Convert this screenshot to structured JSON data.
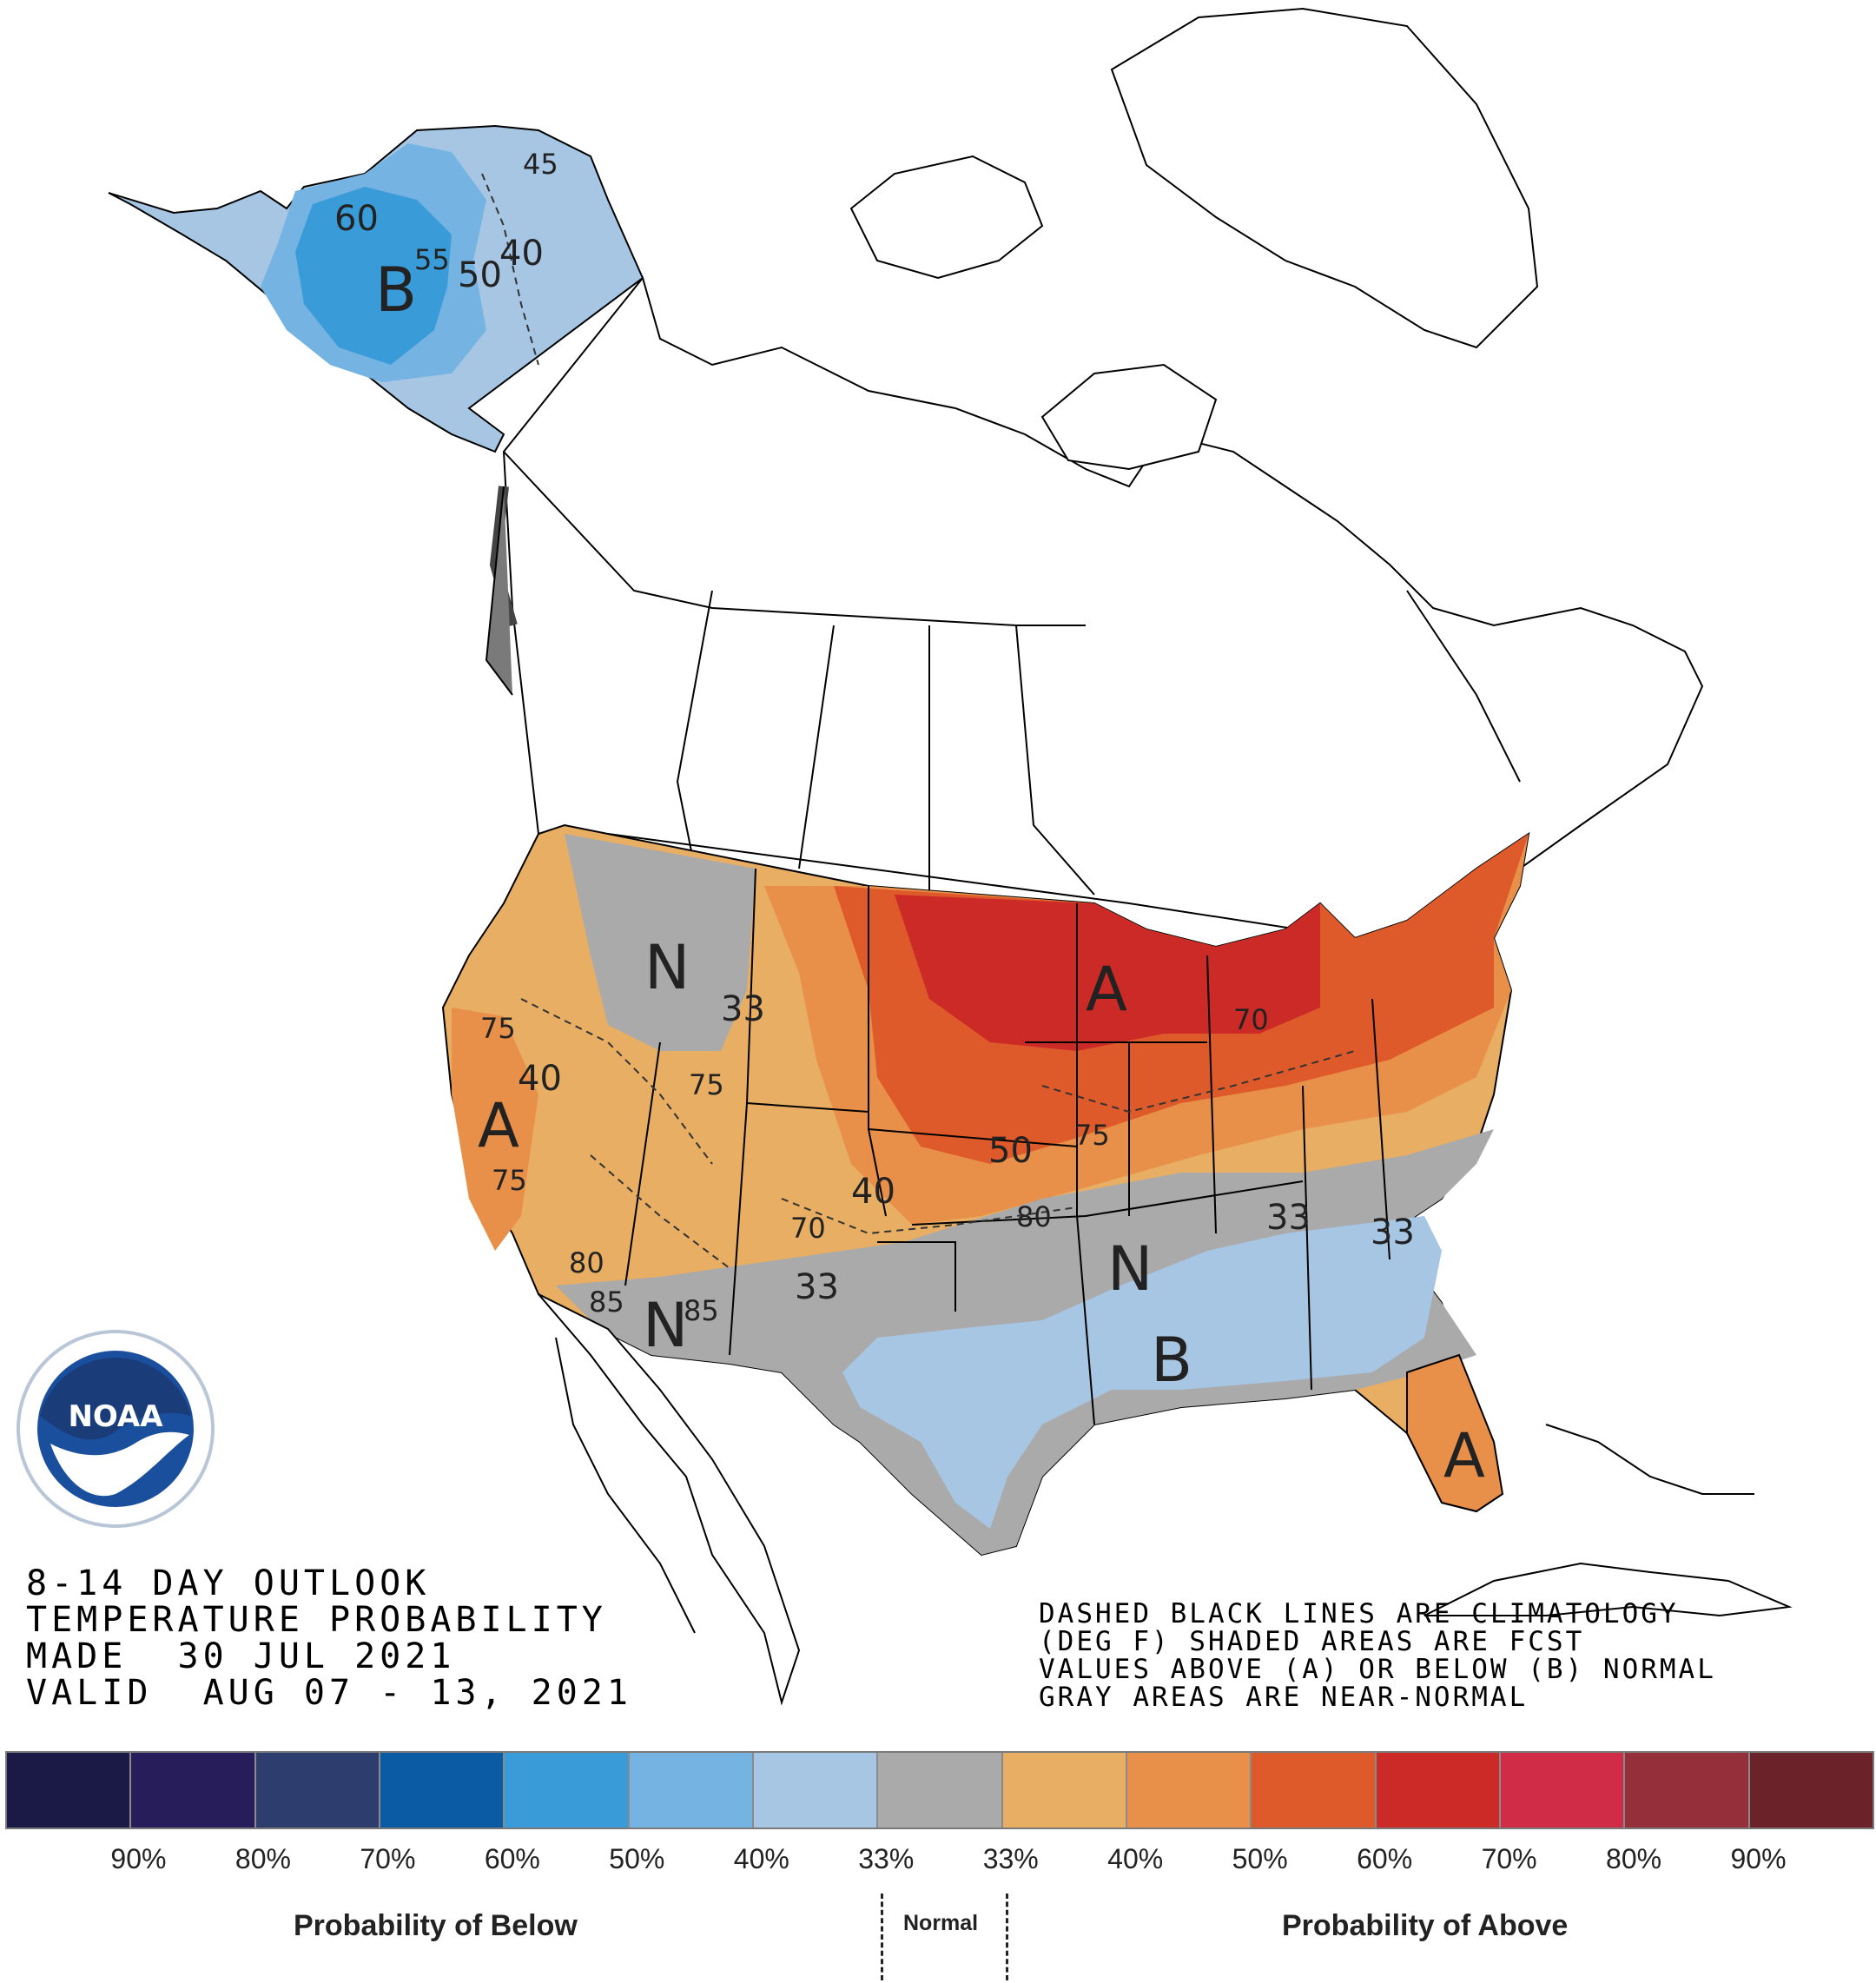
{
  "outlook": {
    "line1": "8-14 DAY OUTLOOK",
    "line2": "TEMPERATURE PROBABILITY",
    "line3": "MADE  30 JUL 2021",
    "line4": "VALID  AUG 07 - 13, 2021"
  },
  "note": {
    "line1": "DASHED BLACK LINES ARE CLIMATOLOGY",
    "line2": "(DEG F) SHADED AREAS ARE FCST",
    "line3": "VALUES ABOVE (A) OR BELOW (B) NORMAL",
    "line4": "GRAY AREAS ARE NEAR-NORMAL"
  },
  "logo": {
    "text": "NOAA",
    "icon": "noaa-seal-icon"
  },
  "legend": {
    "colors": [
      "#1b1a47",
      "#271d5a",
      "#2c3d6e",
      "#0b5aa4",
      "#3a9bd9",
      "#74b3e2",
      "#a6c6e4",
      "#aaaaaa",
      "#e7ae64",
      "#e89049",
      "#de5a2b",
      "#cc2a26",
      "#d02c47",
      "#952f3a",
      "#6b2228"
    ],
    "labels": [
      "90%",
      "80%",
      "70%",
      "60%",
      "50%",
      "40%",
      "33%",
      "33%",
      "40%",
      "50%",
      "60%",
      "70%",
      "80%",
      "90%"
    ],
    "below_caption": "Probability of Below",
    "normal_caption": "Normal",
    "above_caption": "Probability of Above"
  },
  "map_labels": {
    "region_letters": [
      "B",
      "N",
      "A",
      "A",
      "N",
      "N",
      "B",
      "A"
    ],
    "contours": [
      "45",
      "60",
      "55",
      "50",
      "40",
      "33",
      "75",
      "40",
      "70",
      "75",
      "75",
      "80",
      "85",
      "85",
      "50",
      "75",
      "80",
      "70",
      "33",
      "40",
      "33",
      "33"
    ]
  }
}
